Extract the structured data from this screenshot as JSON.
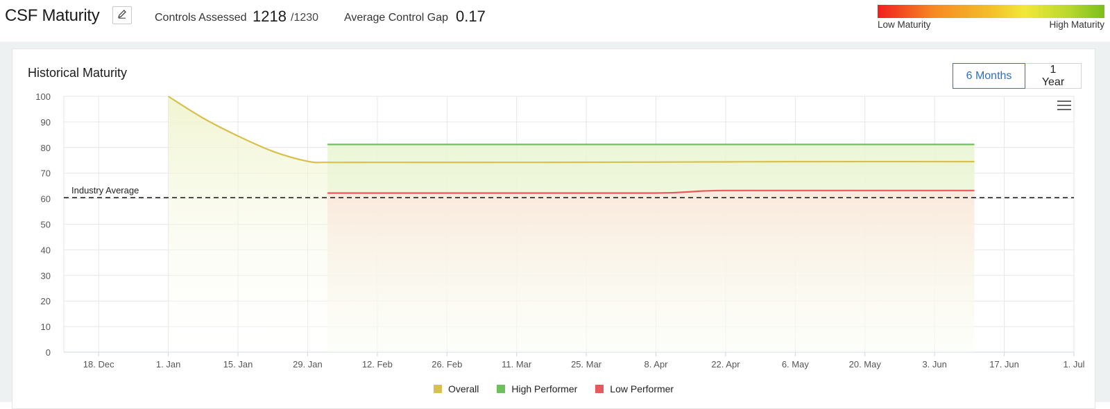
{
  "header": {
    "title": "CSF Maturity",
    "controls_label": "Controls Assessed",
    "controls_value": "1218",
    "controls_total": "/1230",
    "gap_label": "Average Control Gap",
    "gap_value": "0.17",
    "scale_low": "Low Maturity",
    "scale_high": "High Maturity"
  },
  "panel": {
    "title": "Historical Maturity",
    "range_options": [
      "6 Months",
      "1 Year"
    ],
    "selected_range": "6 Months"
  },
  "chart_data": {
    "type": "line",
    "title": "Historical Maturity",
    "x_ticks": [
      "18. Dec",
      "1. Jan",
      "15. Jan",
      "29. Jan",
      "12. Feb",
      "26. Feb",
      "11. Mar",
      "25. Mar",
      "8. Apr",
      "22. Apr",
      "6. May",
      "20. May",
      "3. Jun",
      "17. Jun",
      "1. Jul"
    ],
    "x_range": [
      "2023-12-11",
      "2024-07-01"
    ],
    "y_ticks": [
      0,
      10,
      20,
      30,
      40,
      50,
      60,
      70,
      80,
      90,
      100
    ],
    "ylim": [
      0,
      100
    ],
    "grid": true,
    "series": [
      {
        "name": "Overall",
        "color": "#d6c04e",
        "x": [
          "2024-01-01",
          "2024-01-08",
          "2024-01-15",
          "2024-01-22",
          "2024-01-29",
          "2024-02-02",
          "2024-02-12",
          "2024-03-11",
          "2024-04-08",
          "2024-04-22",
          "2024-05-06",
          "2024-06-11"
        ],
        "values": [
          100,
          91.5,
          84.5,
          78.5,
          74.6,
          74.2,
          74.2,
          74.2,
          74.3,
          74.4,
          74.5,
          74.5
        ]
      },
      {
        "name": "High Performer",
        "color": "#6ec05c",
        "x": [
          "2024-02-02",
          "2024-06-11"
        ],
        "values": [
          81.2,
          81.2
        ]
      },
      {
        "name": "Low Performer",
        "color": "#e8585c",
        "x": [
          "2024-02-02",
          "2024-04-08",
          "2024-04-22",
          "2024-06-11"
        ],
        "values": [
          62.2,
          62.2,
          63.2,
          63.2
        ]
      }
    ],
    "reference_line": {
      "label": "Industry Average",
      "value": 60.4,
      "style": "dashed"
    },
    "legend": {
      "placement": "bottom"
    }
  }
}
